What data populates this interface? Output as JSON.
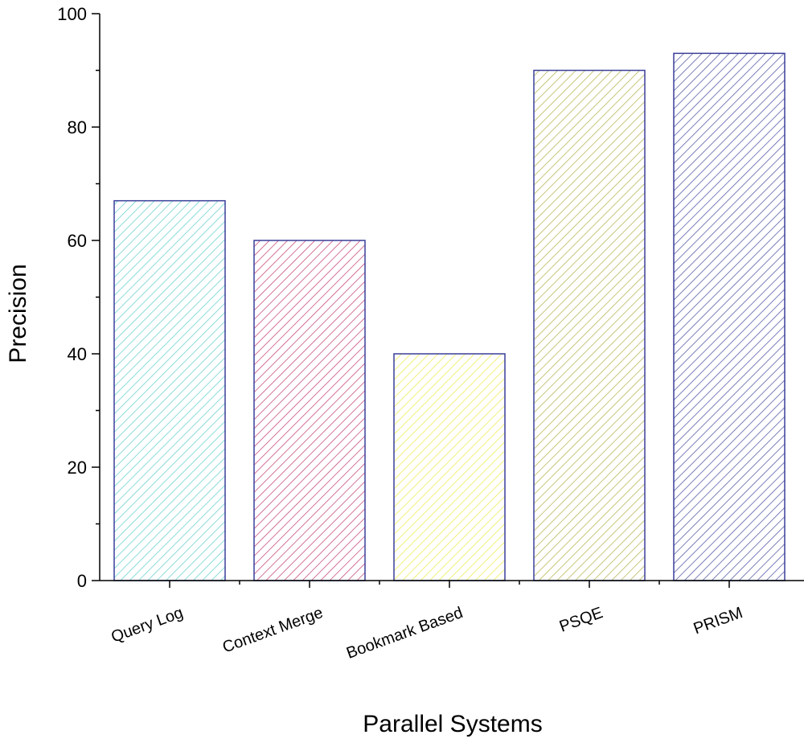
{
  "chart_data": {
    "type": "bar",
    "title": "",
    "xlabel": "Parallel Systems",
    "ylabel": "Precision",
    "categories": [
      "Query Log",
      "Context Merge",
      "Bookmark Based",
      "PSQE",
      "PRISM"
    ],
    "values": [
      67,
      60,
      40,
      90,
      93
    ],
    "ylim": [
      0,
      100
    ],
    "yticks": [
      0,
      20,
      40,
      60,
      80,
      100
    ],
    "grid": false,
    "bar_fill": "hatched",
    "bar_border_color": "#3a3f9a",
    "bar_colors": [
      "#6fd4cf",
      "#c8507e",
      "#ecec5a",
      "#b8b85c",
      "#5b5fa8"
    ]
  }
}
